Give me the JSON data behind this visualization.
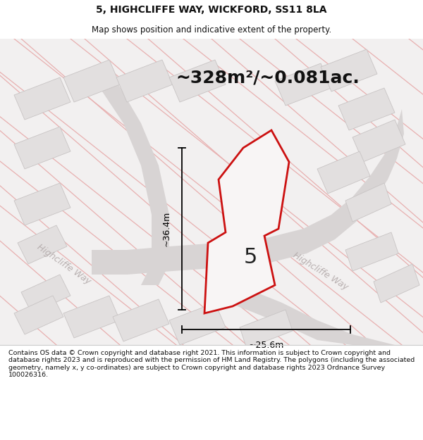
{
  "title": "5, HIGHCLIFFE WAY, WICKFORD, SS11 8LA",
  "subtitle": "Map shows position and indicative extent of the property.",
  "area_text": "~328m²/~0.081ac.",
  "property_number": "5",
  "dim_width": "~25.6m",
  "dim_height": "~36.4m",
  "road_label_left": "Highcliffe Way",
  "road_label_diag": "Highcliffe Way",
  "footer": "Contains OS data © Crown copyright and database right 2021. This information is subject to Crown copyright and database rights 2023 and is reproduced with the permission of HM Land Registry. The polygons (including the associated geometry, namely x, y co-ordinates) are subject to Crown copyright and database rights 2023 Ordnance Survey 100026316.",
  "bg_color": "#f2f0f0",
  "red_color": "#cc1111",
  "road_gray": "#d8d4d4",
  "bldg_fill": "#e2dfdf",
  "bldg_edge": "#c8c4c4",
  "pink_line": "#e8b0b0",
  "road_label_color": "#b8b0b0",
  "title_size": 10,
  "subtitle_size": 8.5,
  "area_fontsize": 18,
  "number_fontsize": 22,
  "dim_fontsize": 9,
  "footer_fontsize": 6.8
}
